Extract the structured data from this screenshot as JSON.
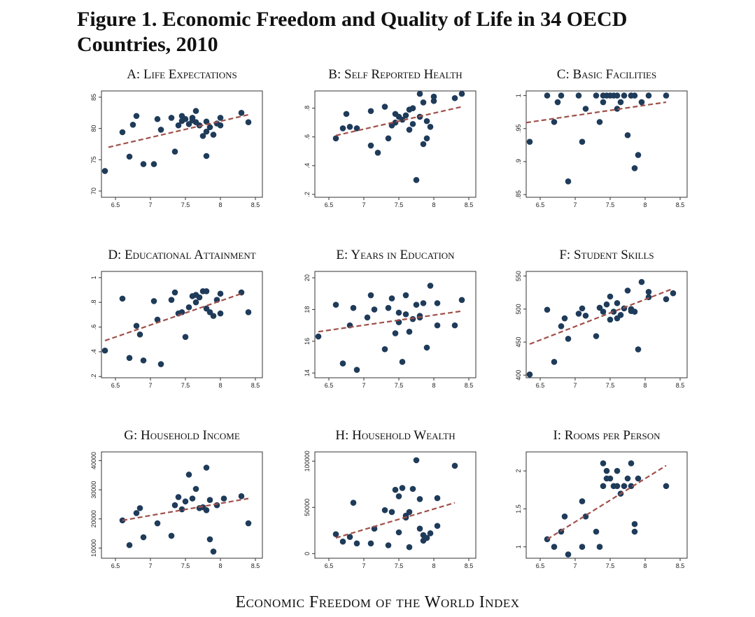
{
  "figure_title": "Figure 1. Economic Freedom and Quality of Life in 34 OECD Countries, 2010",
  "x_axis_title": "Economic Freedom of the World Index",
  "chart_data": [
    {
      "type": "scatter",
      "title": "A: Life Expectations",
      "xlim": [
        6.3,
        8.6
      ],
      "ylim": [
        69,
        86
      ],
      "xticks": [
        6.5,
        7,
        7.5,
        8,
        8.5
      ],
      "xtick_labels": [
        "6.5",
        "7",
        "7.5",
        "8",
        "8.5"
      ],
      "yticks": [
        70,
        75,
        80,
        85
      ],
      "ytick_labels": [
        "70",
        "75",
        "80",
        "85"
      ],
      "trend": [
        [
          6.4,
          77.0
        ],
        [
          8.4,
          82.2
        ]
      ],
      "points": [
        [
          6.35,
          73.2
        ],
        [
          6.6,
          79.4
        ],
        [
          6.7,
          75.5
        ],
        [
          6.75,
          80.6
        ],
        [
          6.8,
          82.0
        ],
        [
          6.9,
          74.3
        ],
        [
          7.05,
          74.3
        ],
        [
          7.1,
          81.5
        ],
        [
          7.15,
          79.8
        ],
        [
          7.3,
          81.7
        ],
        [
          7.35,
          76.3
        ],
        [
          7.4,
          80.5
        ],
        [
          7.45,
          82.0
        ],
        [
          7.45,
          81.2
        ],
        [
          7.5,
          81.5
        ],
        [
          7.55,
          80.7
        ],
        [
          7.6,
          81.3
        ],
        [
          7.6,
          81.7
        ],
        [
          7.65,
          82.8
        ],
        [
          7.65,
          81.0
        ],
        [
          7.7,
          80.5
        ],
        [
          7.75,
          78.8
        ],
        [
          7.8,
          81.1
        ],
        [
          7.8,
          75.6
        ],
        [
          7.8,
          79.5
        ],
        [
          7.85,
          80.2
        ],
        [
          7.9,
          79.0
        ],
        [
          7.95,
          80.8
        ],
        [
          8.0,
          80.5
        ],
        [
          8.0,
          81.7
        ],
        [
          8.3,
          82.5
        ],
        [
          8.4,
          81.0
        ]
      ]
    },
    {
      "type": "scatter",
      "title": "B: Self Reported Health",
      "xlim": [
        6.3,
        8.6
      ],
      "ylim": [
        0.18,
        0.92
      ],
      "xticks": [
        6.5,
        7,
        7.5,
        8,
        8.5
      ],
      "xtick_labels": [
        "6.5",
        "7",
        "7.5",
        "8",
        "8.5"
      ],
      "yticks": [
        0.2,
        0.4,
        0.6,
        0.8
      ],
      "ytick_labels": [
        ".2",
        ".4",
        ".6",
        ".8"
      ],
      "trend": [
        [
          6.6,
          0.61
        ],
        [
          8.4,
          0.81
        ]
      ],
      "points": [
        [
          6.6,
          0.59
        ],
        [
          6.7,
          0.66
        ],
        [
          6.75,
          0.76
        ],
        [
          6.8,
          0.67
        ],
        [
          6.9,
          0.66
        ],
        [
          7.1,
          0.54
        ],
        [
          7.1,
          0.78
        ],
        [
          7.2,
          0.49
        ],
        [
          7.3,
          0.81
        ],
        [
          7.35,
          0.59
        ],
        [
          7.4,
          0.68
        ],
        [
          7.45,
          0.76
        ],
        [
          7.45,
          0.7
        ],
        [
          7.5,
          0.74
        ],
        [
          7.55,
          0.72
        ],
        [
          7.6,
          0.75
        ],
        [
          7.65,
          0.65
        ],
        [
          7.65,
          0.79
        ],
        [
          7.7,
          0.8
        ],
        [
          7.7,
          0.69
        ],
        [
          7.75,
          0.3
        ],
        [
          7.8,
          0.9
        ],
        [
          7.8,
          0.74
        ],
        [
          7.85,
          0.84
        ],
        [
          7.85,
          0.55
        ],
        [
          7.9,
          0.59
        ],
        [
          7.9,
          0.71
        ],
        [
          7.95,
          0.67
        ],
        [
          8.0,
          0.85
        ],
        [
          8.0,
          0.88
        ],
        [
          8.3,
          0.87
        ],
        [
          8.4,
          0.9
        ]
      ]
    },
    {
      "type": "scatter",
      "title": "C: Basic Facilities",
      "xlim": [
        6.3,
        8.6
      ],
      "ylim": [
        0.846,
        1.007
      ],
      "xticks": [
        6.5,
        7,
        7.5,
        8,
        8.5
      ],
      "xtick_labels": [
        "6.5",
        "7",
        "7.5",
        "8",
        "8.5"
      ],
      "yticks": [
        0.85,
        0.9,
        0.95,
        1.0
      ],
      "ytick_labels": [
        ".85",
        ".9",
        ".95",
        "1"
      ],
      "trend": [
        [
          6.3,
          0.959
        ],
        [
          8.3,
          0.99
        ]
      ],
      "points": [
        [
          6.35,
          0.93
        ],
        [
          6.6,
          1.0
        ],
        [
          6.7,
          0.96
        ],
        [
          6.75,
          0.99
        ],
        [
          6.8,
          1.0
        ],
        [
          6.9,
          0.87
        ],
        [
          7.05,
          1.0
        ],
        [
          7.1,
          0.93
        ],
        [
          7.15,
          0.98
        ],
        [
          7.3,
          1.0
        ],
        [
          7.35,
          0.96
        ],
        [
          7.4,
          1.0
        ],
        [
          7.4,
          0.99
        ],
        [
          7.45,
          1.0
        ],
        [
          7.5,
          1.0
        ],
        [
          7.55,
          1.0
        ],
        [
          7.6,
          0.98
        ],
        [
          7.6,
          1.0
        ],
        [
          7.65,
          0.99
        ],
        [
          7.7,
          1.0
        ],
        [
          7.75,
          0.94
        ],
        [
          7.8,
          1.0
        ],
        [
          7.8,
          1.0
        ],
        [
          7.85,
          1.0
        ],
        [
          7.85,
          0.89
        ],
        [
          7.9,
          0.91
        ],
        [
          7.95,
          0.99
        ],
        [
          8.05,
          1.0
        ],
        [
          8.3,
          1.0
        ]
      ]
    },
    {
      "type": "scatter",
      "title": "D: Educational Attainment",
      "xlim": [
        6.3,
        8.6
      ],
      "ylim": [
        0.19,
        1.05
      ],
      "xticks": [
        6.5,
        7,
        7.5,
        8,
        8.5
      ],
      "xtick_labels": [
        "6.5",
        "7",
        "7.5",
        "8",
        "8.5"
      ],
      "yticks": [
        0.2,
        0.4,
        0.6,
        0.8,
        1.0
      ],
      "ytick_labels": [
        ".2",
        ".4",
        ".6",
        ".8",
        "1"
      ],
      "trend": [
        [
          6.35,
          0.49
        ],
        [
          8.3,
          0.87
        ]
      ],
      "points": [
        [
          6.35,
          0.41
        ],
        [
          6.6,
          0.83
        ],
        [
          6.7,
          0.35
        ],
        [
          6.8,
          0.61
        ],
        [
          6.85,
          0.54
        ],
        [
          6.9,
          0.33
        ],
        [
          7.05,
          0.81
        ],
        [
          7.1,
          0.66
        ],
        [
          7.15,
          0.3
        ],
        [
          7.3,
          0.82
        ],
        [
          7.35,
          0.88
        ],
        [
          7.4,
          0.71
        ],
        [
          7.45,
          0.72
        ],
        [
          7.5,
          0.52
        ],
        [
          7.55,
          0.76
        ],
        [
          7.6,
          0.85
        ],
        [
          7.65,
          0.86
        ],
        [
          7.65,
          0.8
        ],
        [
          7.7,
          0.84
        ],
        [
          7.75,
          0.89
        ],
        [
          7.8,
          0.89
        ],
        [
          7.8,
          0.75
        ],
        [
          7.85,
          0.72
        ],
        [
          7.9,
          0.69
        ],
        [
          7.95,
          0.82
        ],
        [
          8.0,
          0.87
        ],
        [
          8.0,
          0.71
        ],
        [
          8.3,
          0.88
        ],
        [
          8.4,
          0.72
        ]
      ]
    },
    {
      "type": "scatter",
      "title": "E: Years in Education",
      "xlim": [
        6.3,
        8.6
      ],
      "ylim": [
        13.7,
        20.4
      ],
      "xticks": [
        6.5,
        7,
        7.5,
        8,
        8.5
      ],
      "xtick_labels": [
        "6.5",
        "7",
        "7.5",
        "8",
        "8.5"
      ],
      "yticks": [
        14,
        16,
        18,
        20
      ],
      "ytick_labels": [
        "14",
        "16",
        "18",
        "20"
      ],
      "trend": [
        [
          6.35,
          16.6
        ],
        [
          8.4,
          17.9
        ]
      ],
      "points": [
        [
          6.35,
          16.3
        ],
        [
          6.6,
          18.3
        ],
        [
          6.7,
          14.6
        ],
        [
          6.8,
          17.0
        ],
        [
          6.85,
          18.1
        ],
        [
          6.9,
          14.2
        ],
        [
          7.05,
          17.5
        ],
        [
          7.1,
          18.9
        ],
        [
          7.15,
          18.0
        ],
        [
          7.3,
          15.5
        ],
        [
          7.35,
          18.1
        ],
        [
          7.4,
          18.7
        ],
        [
          7.45,
          16.5
        ],
        [
          7.5,
          17.2
        ],
        [
          7.5,
          17.8
        ],
        [
          7.55,
          14.7
        ],
        [
          7.6,
          17.7
        ],
        [
          7.6,
          18.9
        ],
        [
          7.65,
          16.6
        ],
        [
          7.7,
          17.4
        ],
        [
          7.75,
          18.3
        ],
        [
          7.8,
          17.5
        ],
        [
          7.8,
          17.6
        ],
        [
          7.85,
          18.4
        ],
        [
          7.9,
          15.6
        ],
        [
          7.95,
          19.5
        ],
        [
          8.05,
          18.4
        ],
        [
          8.05,
          17.0
        ],
        [
          8.3,
          17.0
        ],
        [
          8.4,
          18.6
        ]
      ]
    },
    {
      "type": "scatter",
      "title": "F: Student Skills",
      "xlim": [
        6.3,
        8.6
      ],
      "ylim": [
        396,
        557
      ],
      "xticks": [
        6.5,
        7,
        7.5,
        8,
        8.5
      ],
      "xtick_labels": [
        "6.5",
        "7",
        "7.5",
        "8",
        "8.5"
      ],
      "yticks": [
        400,
        450,
        500,
        550
      ],
      "ytick_labels": [
        "400",
        "450",
        "500",
        "550"
      ],
      "trend": [
        [
          6.35,
          447
        ],
        [
          8.4,
          531
        ]
      ],
      "points": [
        [
          6.35,
          401
        ],
        [
          6.6,
          499
        ],
        [
          6.7,
          420
        ],
        [
          6.8,
          474
        ],
        [
          6.85,
          486
        ],
        [
          6.9,
          455
        ],
        [
          7.05,
          493
        ],
        [
          7.1,
          501
        ],
        [
          7.15,
          490
        ],
        [
          7.3,
          459
        ],
        [
          7.35,
          502
        ],
        [
          7.4,
          496
        ],
        [
          7.45,
          507
        ],
        [
          7.5,
          519
        ],
        [
          7.5,
          484
        ],
        [
          7.55,
          496
        ],
        [
          7.6,
          486
        ],
        [
          7.6,
          509
        ],
        [
          7.65,
          491
        ],
        [
          7.7,
          501
        ],
        [
          7.75,
          528
        ],
        [
          7.8,
          497
        ],
        [
          7.8,
          500
        ],
        [
          7.85,
          496
        ],
        [
          7.9,
          439
        ],
        [
          7.95,
          541
        ],
        [
          8.05,
          526
        ],
        [
          8.05,
          518
        ],
        [
          8.3,
          515
        ],
        [
          8.4,
          524
        ]
      ]
    },
    {
      "type": "scatter",
      "title": "G: Household Income",
      "xlim": [
        6.3,
        8.6
      ],
      "ylim": [
        6500,
        43000
      ],
      "xticks": [
        6.5,
        7,
        7.5,
        8,
        8.5
      ],
      "xtick_labels": [
        "6.5",
        "7",
        "7.5",
        "8",
        "8.5"
      ],
      "yticks": [
        10000,
        20000,
        30000,
        40000
      ],
      "ytick_labels": [
        "10000",
        "20000",
        "30000",
        "40000"
      ],
      "trend": [
        [
          6.6,
          19500
        ],
        [
          8.4,
          27000
        ]
      ],
      "points": [
        [
          6.6,
          19500
        ],
        [
          6.7,
          11000
        ],
        [
          6.8,
          22000
        ],
        [
          6.85,
          23700
        ],
        [
          6.9,
          13700
        ],
        [
          7.1,
          18500
        ],
        [
          7.3,
          14200
        ],
        [
          7.35,
          24700
        ],
        [
          7.4,
          27500
        ],
        [
          7.45,
          23300
        ],
        [
          7.5,
          26000
        ],
        [
          7.55,
          35200
        ],
        [
          7.6,
          27000
        ],
        [
          7.65,
          30300
        ],
        [
          7.7,
          23700
        ],
        [
          7.75,
          24000
        ],
        [
          7.8,
          37600
        ],
        [
          7.8,
          23000
        ],
        [
          7.85,
          26500
        ],
        [
          7.85,
          13000
        ],
        [
          7.9,
          8800
        ],
        [
          7.95,
          24700
        ],
        [
          8.05,
          27000
        ],
        [
          8.3,
          27800
        ],
        [
          8.4,
          18500
        ]
      ]
    },
    {
      "type": "scatter",
      "title": "H: Household Wealth",
      "xlim": [
        6.3,
        8.6
      ],
      "ylim": [
        -5000,
        110000
      ],
      "xticks": [
        6.5,
        7,
        7.5,
        8,
        8.5
      ],
      "xtick_labels": [
        "6.5",
        "7",
        "7.5",
        "8",
        "8.5"
      ],
      "yticks": [
        0,
        50000,
        100000
      ],
      "ytick_labels": [
        "0",
        "50000",
        "100000"
      ],
      "trend": [
        [
          6.6,
          17000
        ],
        [
          8.3,
          55000
        ]
      ],
      "points": [
        [
          6.6,
          21000
        ],
        [
          6.7,
          13000
        ],
        [
          6.8,
          18000
        ],
        [
          6.85,
          55000
        ],
        [
          6.9,
          11000
        ],
        [
          7.1,
          11000
        ],
        [
          7.15,
          27000
        ],
        [
          7.3,
          47000
        ],
        [
          7.35,
          9000
        ],
        [
          7.4,
          45000
        ],
        [
          7.45,
          69000
        ],
        [
          7.5,
          62000
        ],
        [
          7.5,
          23000
        ],
        [
          7.55,
          71000
        ],
        [
          7.6,
          41000
        ],
        [
          7.6,
          39000
        ],
        [
          7.65,
          45000
        ],
        [
          7.65,
          7000
        ],
        [
          7.7,
          70000
        ],
        [
          7.75,
          101000
        ],
        [
          7.8,
          59000
        ],
        [
          7.8,
          27000
        ],
        [
          7.85,
          14000
        ],
        [
          7.85,
          20000
        ],
        [
          7.9,
          17000
        ],
        [
          7.95,
          22000
        ],
        [
          8.05,
          60000
        ],
        [
          8.05,
          30000
        ],
        [
          8.3,
          95000
        ]
      ]
    },
    {
      "type": "scatter",
      "title": "I: Rooms per Person",
      "xlim": [
        6.3,
        8.6
      ],
      "ylim": [
        0.85,
        2.25
      ],
      "xticks": [
        6.5,
        7,
        7.5,
        8,
        8.5
      ],
      "xtick_labels": [
        "6.5",
        "7",
        "7.5",
        "8",
        "8.5"
      ],
      "yticks": [
        1.0,
        1.5,
        2.0
      ],
      "ytick_labels": [
        "1",
        "1.5",
        "2"
      ],
      "trend": [
        [
          6.6,
          1.1
        ],
        [
          8.3,
          2.07
        ]
      ],
      "points": [
        [
          6.6,
          1.1
        ],
        [
          6.7,
          1.0
        ],
        [
          6.8,
          1.2
        ],
        [
          6.85,
          1.4
        ],
        [
          6.9,
          0.9
        ],
        [
          7.1,
          1.0
        ],
        [
          7.1,
          1.6
        ],
        [
          7.15,
          1.4
        ],
        [
          7.3,
          1.2
        ],
        [
          7.35,
          1.0
        ],
        [
          7.4,
          2.1
        ],
        [
          7.4,
          1.8
        ],
        [
          7.45,
          2.0
        ],
        [
          7.45,
          1.9
        ],
        [
          7.5,
          1.9
        ],
        [
          7.55,
          1.8
        ],
        [
          7.6,
          1.8
        ],
        [
          7.6,
          2.0
        ],
        [
          7.65,
          1.7
        ],
        [
          7.7,
          1.8
        ],
        [
          7.75,
          1.9
        ],
        [
          7.8,
          2.1
        ],
        [
          7.8,
          1.8
        ],
        [
          7.85,
          1.2
        ],
        [
          7.85,
          1.3
        ],
        [
          7.9,
          1.9
        ],
        [
          8.3,
          1.8
        ]
      ]
    }
  ]
}
